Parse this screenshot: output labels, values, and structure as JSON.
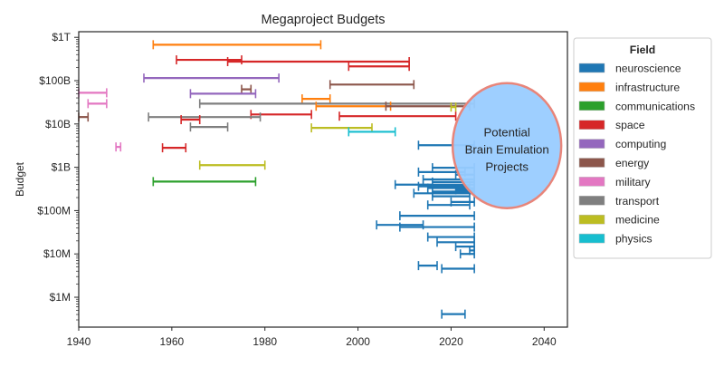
{
  "chart_data": {
    "type": "errorbar-range",
    "title": "Megaproject Budgets",
    "xlabel": "",
    "ylabel": "Budget",
    "xlim": [
      1940,
      2045
    ],
    "ylim_log10": [
      5.31,
      12.13
    ],
    "yscale": "log",
    "xticks": [
      1940,
      1960,
      1980,
      2000,
      2020,
      2040
    ],
    "xtick_labels": [
      "1940",
      "1960",
      "1980",
      "2000",
      "2020",
      "2040"
    ],
    "yticks_log10": [
      6,
      7,
      8,
      9,
      10,
      11,
      12
    ],
    "ytick_labels": [
      "$1M",
      "$10M",
      "$100M",
      "$1B",
      "$10B",
      "$100B",
      "$1T"
    ],
    "grid": false,
    "legend": {
      "title": "Field",
      "placement": "outside-right",
      "entries": [
        {
          "name": "neuroscience",
          "color": "#1f77b4"
        },
        {
          "name": "infrastructure",
          "color": "#ff7f0e"
        },
        {
          "name": "communications",
          "color": "#2ca02c"
        },
        {
          "name": "space",
          "color": "#d62728"
        },
        {
          "name": "computing",
          "color": "#9467bd"
        },
        {
          "name": "energy",
          "color": "#8c564b"
        },
        {
          "name": "military",
          "color": "#e377c2"
        },
        {
          "name": "transport",
          "color": "#7f7f7f"
        },
        {
          "name": "medicine",
          "color": "#bcbd22"
        },
        {
          "name": "physics",
          "color": "#17becf"
        }
      ]
    },
    "annotation": {
      "lines": [
        "Potential",
        "Brain Emulation",
        "Projects"
      ],
      "center_x": 2032,
      "center_log10": 9.5,
      "fill": "#99ccff",
      "edge": "#e8857a"
    },
    "series": [
      {
        "field": "infrastructure",
        "start": 1956,
        "end": 1992,
        "budget_log10": 11.83
      },
      {
        "field": "space",
        "start": 1961,
        "end": 1975,
        "budget_log10": 11.48
      },
      {
        "field": "space",
        "start": 1972,
        "end": 2011,
        "budget_log10": 11.44
      },
      {
        "field": "space",
        "start": 1998,
        "end": 2011,
        "budget_log10": 11.33
      },
      {
        "field": "computing",
        "start": 1954,
        "end": 1983,
        "budget_log10": 11.06
      },
      {
        "field": "energy",
        "start": 1994,
        "end": 2012,
        "budget_log10": 10.91
      },
      {
        "field": "energy",
        "start": 1975,
        "end": 1977,
        "budget_log10": 10.8
      },
      {
        "field": "military",
        "start": 1940,
        "end": 1946,
        "budget_log10": 10.72
      },
      {
        "field": "computing",
        "start": 1964,
        "end": 1978,
        "budget_log10": 10.7
      },
      {
        "field": "infrastructure",
        "start": 1988,
        "end": 1994,
        "budget_log10": 10.58
      },
      {
        "field": "military",
        "start": 1942,
        "end": 1946,
        "budget_log10": 10.47
      },
      {
        "field": "transport",
        "start": 1966,
        "end": 2025,
        "budget_log10": 10.47
      },
      {
        "field": "infrastructure",
        "start": 1991,
        "end": 2007,
        "budget_log10": 10.41
      },
      {
        "field": "energy",
        "start": 2006,
        "end": 2024,
        "budget_log10": 10.41
      },
      {
        "field": "medicine",
        "start": 2020,
        "end": 2021,
        "budget_log10": 10.39
      },
      {
        "field": "space",
        "start": 1977,
        "end": 1990,
        "budget_log10": 10.22
      },
      {
        "field": "energy",
        "start": 1940,
        "end": 1942,
        "budget_log10": 10.16
      },
      {
        "field": "transport",
        "start": 1955,
        "end": 1979,
        "budget_log10": 10.16
      },
      {
        "field": "space",
        "start": 1996,
        "end": 2021,
        "budget_log10": 10.18
      },
      {
        "field": "space",
        "start": 1962,
        "end": 1966,
        "budget_log10": 10.1
      },
      {
        "field": "transport",
        "start": 1964,
        "end": 1972,
        "budget_log10": 9.93
      },
      {
        "field": "medicine",
        "start": 1990,
        "end": 2003,
        "budget_log10": 9.91
      },
      {
        "field": "physics",
        "start": 1998,
        "end": 2008,
        "budget_log10": 9.82
      },
      {
        "field": "military",
        "start": 1948,
        "end": 1949,
        "budget_log10": 9.47
      },
      {
        "field": "space",
        "start": 1958,
        "end": 1963,
        "budget_log10": 9.45
      },
      {
        "field": "medicine",
        "start": 1966,
        "end": 1980,
        "budget_log10": 9.05
      },
      {
        "field": "communications",
        "start": 1956,
        "end": 1978,
        "budget_log10": 8.67
      },
      {
        "field": "neuroscience",
        "start": 2013,
        "end": 2025,
        "budget_log10": 9.51
      },
      {
        "field": "neuroscience",
        "start": 2016,
        "end": 2025,
        "budget_log10": 8.99
      },
      {
        "field": "neuroscience",
        "start": 2013,
        "end": 2023,
        "budget_log10": 8.89
      },
      {
        "field": "neuroscience",
        "start": 2021,
        "end": 2025,
        "budget_log10": 8.83
      },
      {
        "field": "neuroscience",
        "start": 2014,
        "end": 2025,
        "budget_log10": 8.72
      },
      {
        "field": "neuroscience",
        "start": 2016,
        "end": 2025,
        "budget_log10": 8.66
      },
      {
        "field": "neuroscience",
        "start": 2008,
        "end": 2025,
        "budget_log10": 8.6
      },
      {
        "field": "neuroscience",
        "start": 2013,
        "end": 2024,
        "budget_log10": 8.56
      },
      {
        "field": "neuroscience",
        "start": 2015,
        "end": 2025,
        "budget_log10": 8.52
      },
      {
        "field": "neuroscience",
        "start": 2021,
        "end": 2025,
        "budget_log10": 8.48
      },
      {
        "field": "neuroscience",
        "start": 2016,
        "end": 2025,
        "budget_log10": 8.44
      },
      {
        "field": "neuroscience",
        "start": 2012,
        "end": 2025,
        "budget_log10": 8.4
      },
      {
        "field": "neuroscience",
        "start": 2016,
        "end": 2024,
        "budget_log10": 8.33
      },
      {
        "field": "neuroscience",
        "start": 2020,
        "end": 2025,
        "budget_log10": 8.2
      },
      {
        "field": "neuroscience",
        "start": 2015,
        "end": 2024,
        "budget_log10": 8.13
      },
      {
        "field": "neuroscience",
        "start": 2009,
        "end": 2025,
        "budget_log10": 7.88
      },
      {
        "field": "neuroscience",
        "start": 2004,
        "end": 2014,
        "budget_log10": 7.67
      },
      {
        "field": "neuroscience",
        "start": 2009,
        "end": 2025,
        "budget_log10": 7.62
      },
      {
        "field": "neuroscience",
        "start": 2015,
        "end": 2025,
        "budget_log10": 7.39
      },
      {
        "field": "neuroscience",
        "start": 2017,
        "end": 2025,
        "budget_log10": 7.27
      },
      {
        "field": "neuroscience",
        "start": 2021,
        "end": 2025,
        "budget_log10": 7.17
      },
      {
        "field": "neuroscience",
        "start": 2024,
        "end": 2025,
        "budget_log10": 7.08
      },
      {
        "field": "neuroscience",
        "start": 2022,
        "end": 2025,
        "budget_log10": 7.0
      },
      {
        "field": "neuroscience",
        "start": 2013,
        "end": 2017,
        "budget_log10": 6.73
      },
      {
        "field": "neuroscience",
        "start": 2018,
        "end": 2025,
        "budget_log10": 6.66
      },
      {
        "field": "neuroscience",
        "start": 2018,
        "end": 2023,
        "budget_log10": 5.61
      }
    ]
  }
}
